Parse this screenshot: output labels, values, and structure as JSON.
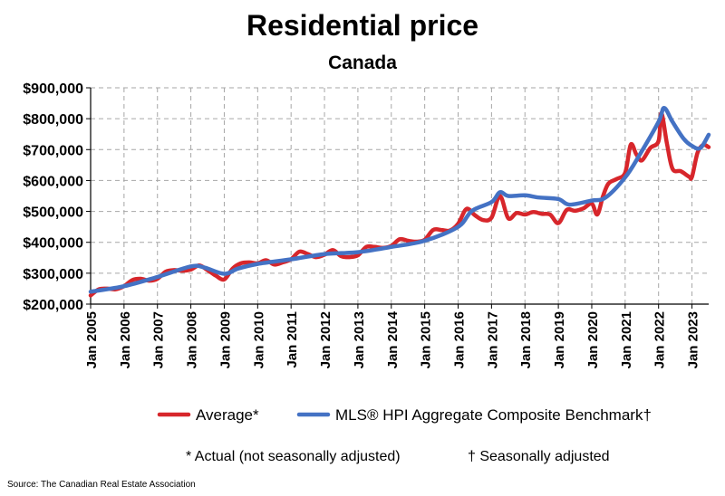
{
  "chart_data": {
    "type": "line",
    "title": "Residential price",
    "subtitle": "Canada",
    "xlabel": "",
    "ylabel": "",
    "ylim": [
      200000,
      900000
    ],
    "xlim": [
      "2005-01",
      "2023-07"
    ],
    "y_ticks": [
      "$200,000",
      "$300,000",
      "$400,000",
      "$500,000",
      "$600,000",
      "$700,000",
      "$800,000",
      "$900,000"
    ],
    "x_ticks": [
      "Jan 2005",
      "Jan 2006",
      "Jan 2007",
      "Jan 2008",
      "Jan 2009",
      "Jan 2010",
      "Jan 2011",
      "Jan 2012",
      "Jan 2013",
      "Jan 2014",
      "Jan 2015",
      "Jan 2016",
      "Jan 2017",
      "Jan 2018",
      "Jan 2019",
      "Jan 2020",
      "Jan 2021",
      "Jan 2022",
      "Jan 2023"
    ],
    "grid": true,
    "legend_position": "bottom",
    "series": [
      {
        "name": "Average*",
        "color": "#d7262b",
        "points": [
          [
            "2005-01",
            228000
          ],
          [
            "2005-04",
            248000
          ],
          [
            "2005-07",
            250000
          ],
          [
            "2005-10",
            248000
          ],
          [
            "2006-01",
            258000
          ],
          [
            "2006-04",
            278000
          ],
          [
            "2006-07",
            282000
          ],
          [
            "2006-10",
            276000
          ],
          [
            "2007-01",
            282000
          ],
          [
            "2007-04",
            305000
          ],
          [
            "2007-07",
            310000
          ],
          [
            "2007-10",
            308000
          ],
          [
            "2008-01",
            312000
          ],
          [
            "2008-04",
            325000
          ],
          [
            "2008-07",
            310000
          ],
          [
            "2008-10",
            292000
          ],
          [
            "2009-01",
            280000
          ],
          [
            "2009-04",
            315000
          ],
          [
            "2009-07",
            332000
          ],
          [
            "2009-10",
            335000
          ],
          [
            "2010-01",
            332000
          ],
          [
            "2010-04",
            342000
          ],
          [
            "2010-07",
            328000
          ],
          [
            "2010-10",
            335000
          ],
          [
            "2011-01",
            345000
          ],
          [
            "2011-04",
            370000
          ],
          [
            "2011-07",
            362000
          ],
          [
            "2011-10",
            352000
          ],
          [
            "2012-01",
            360000
          ],
          [
            "2012-04",
            375000
          ],
          [
            "2012-07",
            355000
          ],
          [
            "2012-10",
            352000
          ],
          [
            "2013-01",
            358000
          ],
          [
            "2013-04",
            385000
          ],
          [
            "2013-07",
            385000
          ],
          [
            "2013-10",
            382000
          ],
          [
            "2014-01",
            388000
          ],
          [
            "2014-04",
            410000
          ],
          [
            "2014-07",
            405000
          ],
          [
            "2014-10",
            402000
          ],
          [
            "2015-01",
            408000
          ],
          [
            "2015-04",
            440000
          ],
          [
            "2015-07",
            440000
          ],
          [
            "2015-10",
            438000
          ],
          [
            "2016-01",
            460000
          ],
          [
            "2016-04",
            508000
          ],
          [
            "2016-07",
            488000
          ],
          [
            "2016-10",
            472000
          ],
          [
            "2017-01",
            480000
          ],
          [
            "2017-04",
            550000
          ],
          [
            "2017-07",
            478000
          ],
          [
            "2017-10",
            495000
          ],
          [
            "2018-01",
            490000
          ],
          [
            "2018-04",
            498000
          ],
          [
            "2018-07",
            492000
          ],
          [
            "2018-10",
            490000
          ],
          [
            "2019-01",
            462000
          ],
          [
            "2019-04",
            505000
          ],
          [
            "2019-07",
            502000
          ],
          [
            "2019-10",
            510000
          ],
          [
            "2020-01",
            525000
          ],
          [
            "2020-03",
            490000
          ],
          [
            "2020-05",
            548000
          ],
          [
            "2020-07",
            590000
          ],
          [
            "2020-10",
            605000
          ],
          [
            "2021-01",
            625000
          ],
          [
            "2021-03",
            716000
          ],
          [
            "2021-05",
            685000
          ],
          [
            "2021-07",
            665000
          ],
          [
            "2021-10",
            705000
          ],
          [
            "2022-01",
            728000
          ],
          [
            "2022-02",
            818000
          ],
          [
            "2022-04",
            720000
          ],
          [
            "2022-06",
            638000
          ],
          [
            "2022-09",
            630000
          ],
          [
            "2022-12",
            612000
          ],
          [
            "2023-01",
            612000
          ],
          [
            "2023-03",
            690000
          ],
          [
            "2023-05",
            715000
          ],
          [
            "2023-07",
            708000
          ]
        ]
      },
      {
        "name": "MLS® HPI Aggregate Composite Benchmark†",
        "color": "#4472c4",
        "points": [
          [
            "2005-01",
            240000
          ],
          [
            "2006-01",
            258000
          ],
          [
            "2007-01",
            288000
          ],
          [
            "2008-01",
            322000
          ],
          [
            "2008-06",
            318000
          ],
          [
            "2009-01",
            298000
          ],
          [
            "2009-06",
            315000
          ],
          [
            "2010-01",
            330000
          ],
          [
            "2011-01",
            345000
          ],
          [
            "2012-01",
            362000
          ],
          [
            "2013-01",
            368000
          ],
          [
            "2014-01",
            385000
          ],
          [
            "2015-01",
            405000
          ],
          [
            "2016-01",
            450000
          ],
          [
            "2016-06",
            502000
          ],
          [
            "2017-01",
            530000
          ],
          [
            "2017-04",
            562000
          ],
          [
            "2017-07",
            550000
          ],
          [
            "2018-01",
            552000
          ],
          [
            "2018-06",
            545000
          ],
          [
            "2019-01",
            540000
          ],
          [
            "2019-05",
            522000
          ],
          [
            "2020-01",
            535000
          ],
          [
            "2020-06",
            545000
          ],
          [
            "2021-01",
            610000
          ],
          [
            "2021-06",
            680000
          ],
          [
            "2022-01",
            790000
          ],
          [
            "2022-03",
            835000
          ],
          [
            "2022-06",
            790000
          ],
          [
            "2022-10",
            735000
          ],
          [
            "2023-01",
            712000
          ],
          [
            "2023-04",
            705000
          ],
          [
            "2023-07",
            748000
          ]
        ]
      }
    ]
  },
  "notes": {
    "left": "* Actual (not seasonally adjusted)",
    "right": "† Seasonally adjusted"
  },
  "source": "Source: The Canadian Real Estate Association"
}
